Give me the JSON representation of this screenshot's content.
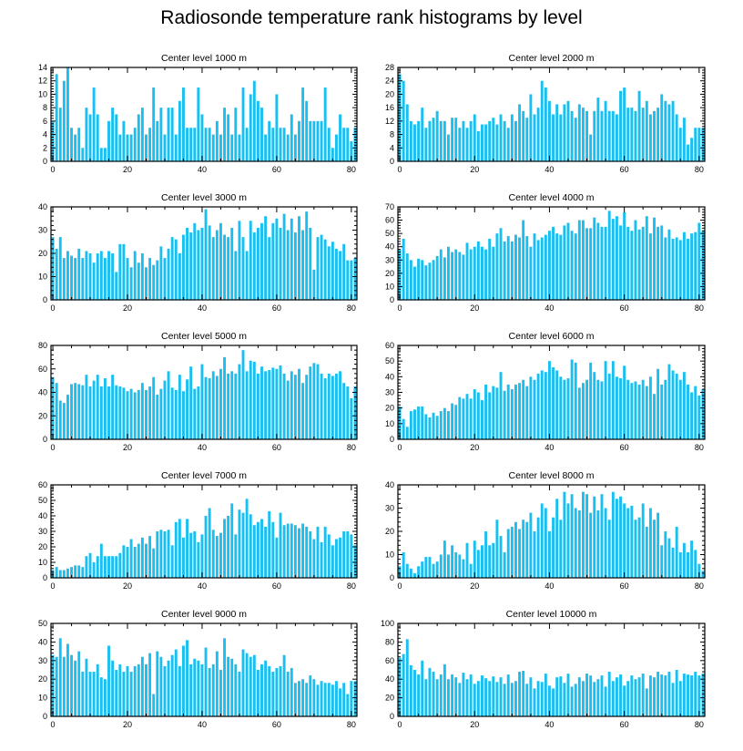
{
  "title": "Radiosonde temperature rank histograms by level",
  "chart_data": [
    {
      "type": "bar",
      "title": "Center level 1000 m",
      "bar_color": "#18bff0",
      "x_ticks": [
        0,
        20,
        40,
        60,
        80
      ],
      "xlim": [
        -0.5,
        81.5
      ],
      "ylim": [
        0,
        14
      ],
      "y_ticks": [
        0,
        2,
        4,
        6,
        8,
        10,
        12,
        14
      ],
      "values": [
        6,
        13,
        8,
        12,
        14,
        5,
        4,
        5,
        2,
        8,
        7,
        11,
        7,
        2,
        2,
        6,
        8,
        7,
        4,
        6,
        4,
        4,
        5,
        7,
        8,
        4,
        5,
        11,
        6,
        8,
        4,
        8,
        8,
        4,
        9,
        11,
        5,
        5,
        5,
        11,
        7,
        5,
        5,
        4,
        6,
        4,
        8,
        7,
        4,
        8,
        4,
        11,
        5,
        10,
        12,
        9,
        8,
        4,
        6,
        5,
        10,
        5,
        5,
        4,
        7,
        4,
        6,
        11,
        9,
        6,
        6,
        6,
        6,
        11,
        5,
        2,
        4,
        7,
        5,
        5,
        3,
        5
      ]
    },
    {
      "type": "bar",
      "title": "Center level 2000 m",
      "bar_color": "#18bff0",
      "x_ticks": [
        0,
        20,
        40,
        60,
        80
      ],
      "xlim": [
        -0.5,
        81.5
      ],
      "ylim": [
        0,
        28
      ],
      "y_ticks": [
        0,
        4,
        8,
        12,
        16,
        20,
        24,
        28
      ],
      "values": [
        26,
        24,
        17,
        12,
        11,
        12,
        16,
        10,
        12,
        13,
        15,
        12,
        12,
        8,
        13,
        13,
        10,
        12,
        10,
        12,
        14,
        9,
        11,
        11,
        12,
        13,
        11,
        14,
        12,
        10,
        14,
        12,
        17,
        15,
        13,
        20,
        14,
        16,
        24,
        22,
        18,
        14,
        17,
        14,
        17,
        18,
        15,
        13,
        17,
        16,
        15,
        8,
        15,
        19,
        15,
        18,
        15,
        15,
        14,
        21,
        22,
        16,
        16,
        15,
        21,
        16,
        18,
        14,
        15,
        16,
        20,
        18,
        17,
        18,
        14,
        10,
        13,
        5,
        7,
        10,
        10,
        10
      ]
    },
    {
      "type": "bar",
      "title": "Center level 3000 m",
      "bar_color": "#18bff0",
      "x_ticks": [
        0,
        20,
        40,
        60,
        80
      ],
      "xlim": [
        -0.5,
        81.5
      ],
      "ylim": [
        0,
        40
      ],
      "y_ticks": [
        0,
        10,
        20,
        30,
        40
      ],
      "values": [
        27,
        22,
        27,
        18,
        21,
        19,
        18,
        22,
        18,
        21,
        20,
        16,
        20,
        21,
        18,
        21,
        20,
        12,
        24,
        24,
        18,
        14,
        21,
        16,
        20,
        14,
        18,
        15,
        17,
        23,
        18,
        22,
        27,
        26,
        20,
        28,
        31,
        29,
        33,
        30,
        31,
        39,
        32,
        27,
        30,
        33,
        28,
        27,
        31,
        21,
        34,
        27,
        21,
        34,
        29,
        31,
        33,
        36,
        27,
        33,
        35,
        31,
        37,
        30,
        35,
        29,
        36,
        30,
        38,
        31,
        13,
        27,
        28,
        26,
        23,
        25,
        22,
        21,
        24,
        17,
        17,
        18
      ]
    },
    {
      "type": "bar",
      "title": "Center level 4000 m",
      "bar_color": "#18bff0",
      "x_ticks": [
        0,
        20,
        40,
        60,
        80
      ],
      "xlim": [
        -0.5,
        81.5
      ],
      "ylim": [
        0,
        70
      ],
      "y_ticks": [
        0,
        10,
        20,
        30,
        40,
        50,
        60,
        70
      ],
      "values": [
        38,
        46,
        35,
        30,
        25,
        31,
        30,
        26,
        28,
        30,
        33,
        38,
        32,
        40,
        36,
        38,
        36,
        34,
        43,
        38,
        40,
        44,
        40,
        38,
        46,
        40,
        50,
        54,
        44,
        48,
        44,
        49,
        47,
        60,
        48,
        40,
        50,
        45,
        47,
        49,
        52,
        55,
        50,
        49,
        56,
        58,
        52,
        50,
        60,
        60,
        54,
        54,
        62,
        58,
        55,
        55,
        67,
        61,
        63,
        56,
        66,
        55,
        52,
        60,
        53,
        55,
        63,
        50,
        62,
        55,
        56,
        47,
        53,
        46,
        47,
        45,
        51,
        46,
        50,
        51,
        58,
        52
      ]
    },
    {
      "type": "bar",
      "title": "Center level 5000 m",
      "bar_color": "#18bff0",
      "x_ticks": [
        0,
        20,
        40,
        60,
        80
      ],
      "xlim": [
        -0.5,
        81.5
      ],
      "ylim": [
        0,
        80
      ],
      "y_ticks": [
        0,
        20,
        40,
        60,
        80
      ],
      "values": [
        53,
        48,
        33,
        31,
        38,
        47,
        48,
        47,
        46,
        55,
        45,
        50,
        55,
        45,
        52,
        45,
        55,
        46,
        45,
        44,
        41,
        43,
        40,
        42,
        48,
        42,
        45,
        53,
        38,
        43,
        50,
        58,
        44,
        42,
        55,
        41,
        51,
        62,
        43,
        45,
        64,
        53,
        52,
        58,
        54,
        60,
        70,
        56,
        58,
        56,
        64,
        76,
        58,
        67,
        66,
        56,
        62,
        58,
        59,
        61,
        60,
        63,
        56,
        50,
        58,
        55,
        60,
        48,
        55,
        62,
        65,
        64,
        56,
        52,
        56,
        54,
        56,
        58,
        48,
        45,
        35,
        45
      ]
    },
    {
      "type": "bar",
      "title": "Center level 6000 m",
      "bar_color": "#18bff0",
      "x_ticks": [
        0,
        20,
        40,
        60,
        80
      ],
      "xlim": [
        -0.5,
        81.5
      ],
      "ylim": [
        0,
        60
      ],
      "y_ticks": [
        0,
        10,
        20,
        30,
        40,
        50,
        60
      ],
      "values": [
        21,
        13,
        8,
        18,
        19,
        21,
        21,
        16,
        14,
        17,
        15,
        18,
        20,
        18,
        23,
        22,
        27,
        26,
        29,
        26,
        32,
        30,
        25,
        35,
        30,
        34,
        33,
        43,
        31,
        35,
        32,
        35,
        36,
        38,
        34,
        40,
        38,
        42,
        44,
        43,
        50,
        46,
        44,
        40,
        38,
        39,
        51,
        49,
        33,
        36,
        38,
        49,
        43,
        38,
        37,
        50,
        42,
        50,
        40,
        39,
        47,
        38,
        36,
        37,
        35,
        38,
        34,
        40,
        29,
        45,
        35,
        38,
        48,
        44,
        42,
        38,
        43,
        35,
        30,
        34,
        28,
        32
      ]
    },
    {
      "type": "bar",
      "title": "Center level 7000 m",
      "bar_color": "#18bff0",
      "x_ticks": [
        0,
        20,
        40,
        60,
        80
      ],
      "xlim": [
        -0.5,
        81.5
      ],
      "ylim": [
        0,
        60
      ],
      "y_ticks": [
        0,
        10,
        20,
        30,
        40,
        50,
        60
      ],
      "values": [
        5,
        7,
        5,
        5,
        6,
        7,
        8,
        8,
        7,
        14,
        16,
        10,
        14,
        22,
        14,
        14,
        14,
        14,
        16,
        21,
        20,
        25,
        20,
        22,
        26,
        22,
        27,
        19,
        30,
        31,
        30,
        31,
        21,
        36,
        38,
        26,
        38,
        29,
        30,
        23,
        28,
        40,
        45,
        31,
        27,
        29,
        38,
        40,
        48,
        28,
        44,
        42,
        51,
        41,
        34,
        36,
        38,
        33,
        43,
        36,
        26,
        42,
        34,
        35,
        35,
        34,
        32,
        35,
        33,
        30,
        25,
        33,
        23,
        33,
        28,
        21,
        25,
        26,
        30,
        30,
        28,
        21
      ]
    },
    {
      "type": "bar",
      "title": "Center level 8000 m",
      "bar_color": "#18bff0",
      "x_ticks": [
        0,
        20,
        40,
        60,
        80
      ],
      "xlim": [
        -0.5,
        81.5
      ],
      "ylim": [
        0,
        40
      ],
      "y_ticks": [
        0,
        10,
        20,
        30,
        40
      ],
      "values": [
        5,
        11,
        6,
        4,
        2,
        5,
        7,
        9,
        9,
        6,
        7,
        10,
        16,
        10,
        14,
        11,
        10,
        8,
        15,
        6,
        16,
        12,
        14,
        20,
        14,
        15,
        25,
        18,
        11,
        21,
        22,
        24,
        21,
        25,
        24,
        28,
        20,
        26,
        32,
        30,
        20,
        26,
        34,
        25,
        37,
        32,
        36,
        30,
        29,
        37,
        36,
        28,
        35,
        29,
        36,
        30,
        25,
        37,
        34,
        35,
        32,
        30,
        31,
        25,
        26,
        32,
        22,
        30,
        25,
        28,
        14,
        20,
        17,
        13,
        22,
        11,
        15,
        11,
        16,
        12,
        6,
        3
      ]
    },
    {
      "type": "bar",
      "title": "Center level 9000 m",
      "bar_color": "#18bff0",
      "x_ticks": [
        0,
        20,
        40,
        60,
        80
      ],
      "xlim": [
        -0.5,
        81.5
      ],
      "ylim": [
        0,
        50
      ],
      "y_ticks": [
        0,
        10,
        20,
        30,
        40,
        50
      ],
      "values": [
        33,
        32,
        42,
        32,
        39,
        33,
        30,
        35,
        24,
        31,
        24,
        24,
        28,
        21,
        20,
        38,
        30,
        25,
        28,
        24,
        27,
        24,
        27,
        28,
        32,
        28,
        34,
        12,
        35,
        32,
        27,
        30,
        33,
        36,
        27,
        38,
        41,
        28,
        31,
        30,
        28,
        37,
        26,
        28,
        35,
        25,
        42,
        32,
        31,
        28,
        24,
        36,
        34,
        32,
        33,
        25,
        28,
        30,
        27,
        24,
        26,
        27,
        33,
        24,
        26,
        18,
        19,
        20,
        18,
        22,
        20,
        17,
        19,
        18,
        18,
        17,
        19,
        15,
        18,
        12,
        19,
        19
      ]
    },
    {
      "type": "bar",
      "title": "Center level 10000 m",
      "bar_color": "#18bff0",
      "x_ticks": [
        0,
        20,
        40,
        60,
        80
      ],
      "xlim": [
        -0.5,
        81.5
      ],
      "ylim": [
        0,
        100
      ],
      "y_ticks": [
        0,
        20,
        40,
        60,
        80,
        100
      ],
      "values": [
        63,
        67,
        83,
        55,
        50,
        45,
        60,
        40,
        52,
        48,
        40,
        45,
        56,
        40,
        45,
        42,
        36,
        47,
        40,
        45,
        35,
        38,
        44,
        41,
        38,
        43,
        37,
        42,
        35,
        45,
        36,
        38,
        48,
        49,
        35,
        42,
        30,
        38,
        37,
        46,
        33,
        30,
        42,
        43,
        36,
        46,
        32,
        35,
        42,
        38,
        46,
        44,
        37,
        40,
        44,
        32,
        48,
        38,
        42,
        45,
        33,
        38,
        44,
        40,
        42,
        46,
        30,
        44,
        42,
        48,
        45,
        44,
        48,
        36,
        50,
        38,
        46,
        45,
        44,
        48,
        44,
        46
      ]
    }
  ]
}
